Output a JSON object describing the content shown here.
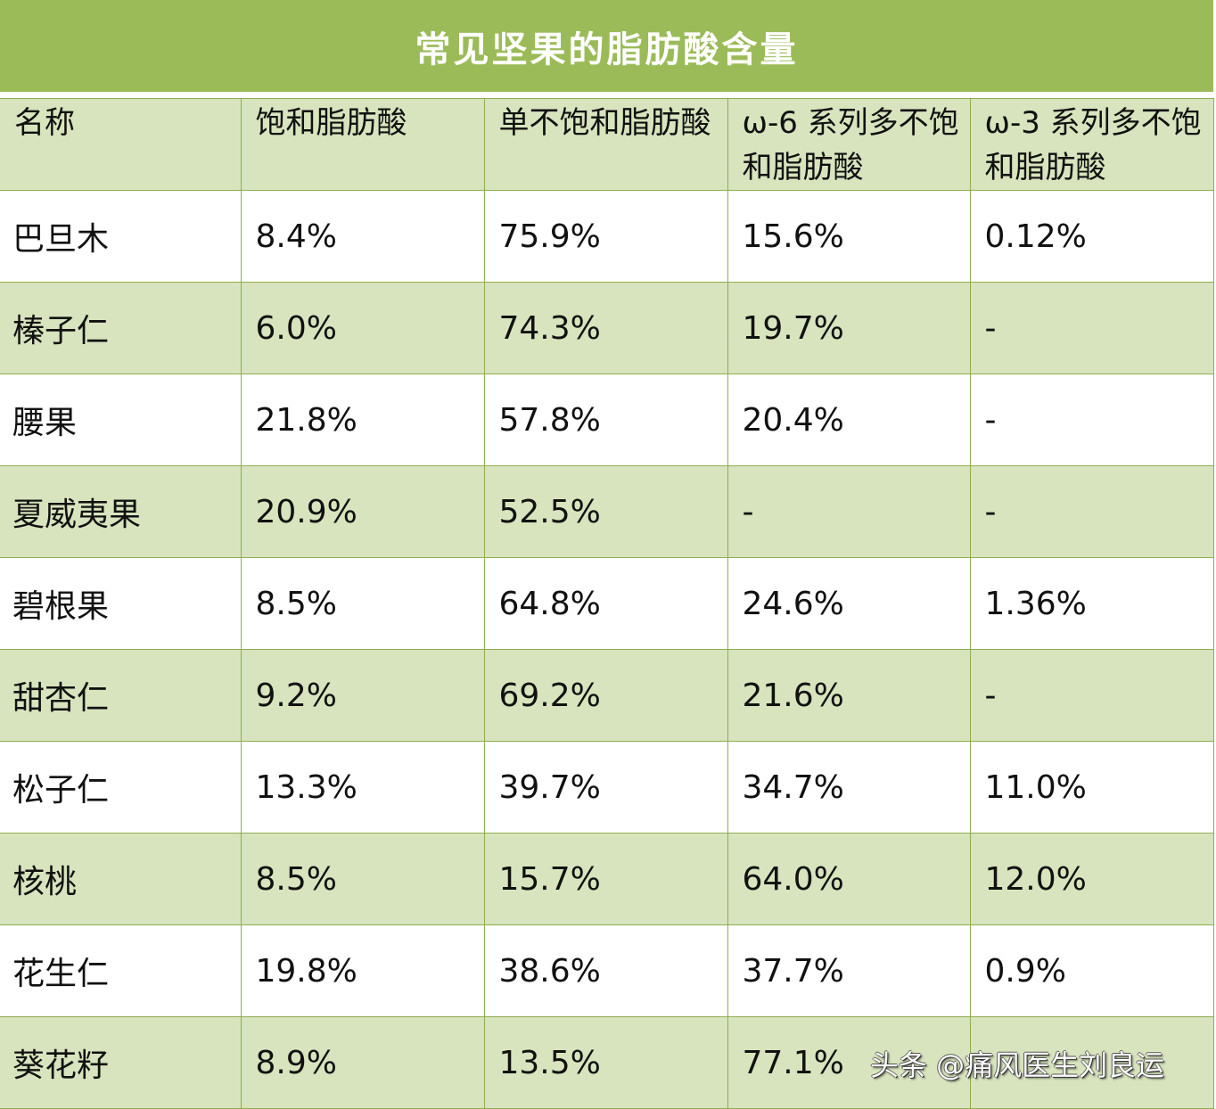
{
  "title": "常见坚果的脂肪酸含量",
  "table": {
    "headers": [
      "名称",
      "饱和脂肪酸",
      "单不饱和脂肪酸",
      "ω-6 系列多不饱和脂肪酸",
      "ω-3 系列多不饱和脂肪酸"
    ],
    "rows": [
      [
        "巴旦木",
        "8.4%",
        "75.9%",
        "15.6%",
        "0.12%"
      ],
      [
        "榛子仁",
        "6.0%",
        "74.3%",
        "19.7%",
        "-"
      ],
      [
        "腰果",
        "21.8%",
        "57.8%",
        "20.4%",
        "-"
      ],
      [
        "夏威夷果",
        "20.9%",
        "52.5%",
        "-",
        "-"
      ],
      [
        "碧根果",
        "8.5%",
        "64.8%",
        "24.6%",
        "1.36%"
      ],
      [
        "甜杏仁",
        "9.2%",
        "69.2%",
        "21.6%",
        "-"
      ],
      [
        "松子仁",
        "13.3%",
        "39.7%",
        "34.7%",
        "11.0%"
      ],
      [
        "核桃",
        "8.5%",
        "15.7%",
        "64.0%",
        "12.0%"
      ],
      [
        "花生仁",
        "19.8%",
        "38.6%",
        "37.7%",
        "0.9%"
      ],
      [
        "葵花籽",
        "8.9%",
        "13.5%",
        "77.1%",
        ""
      ]
    ]
  },
  "watermark": "头条 @痛风医生刘良运",
  "colors": {
    "title_bg": "#9bbb59",
    "alt_row_bg": "#d7e4bd",
    "border": "#8fae4f"
  }
}
